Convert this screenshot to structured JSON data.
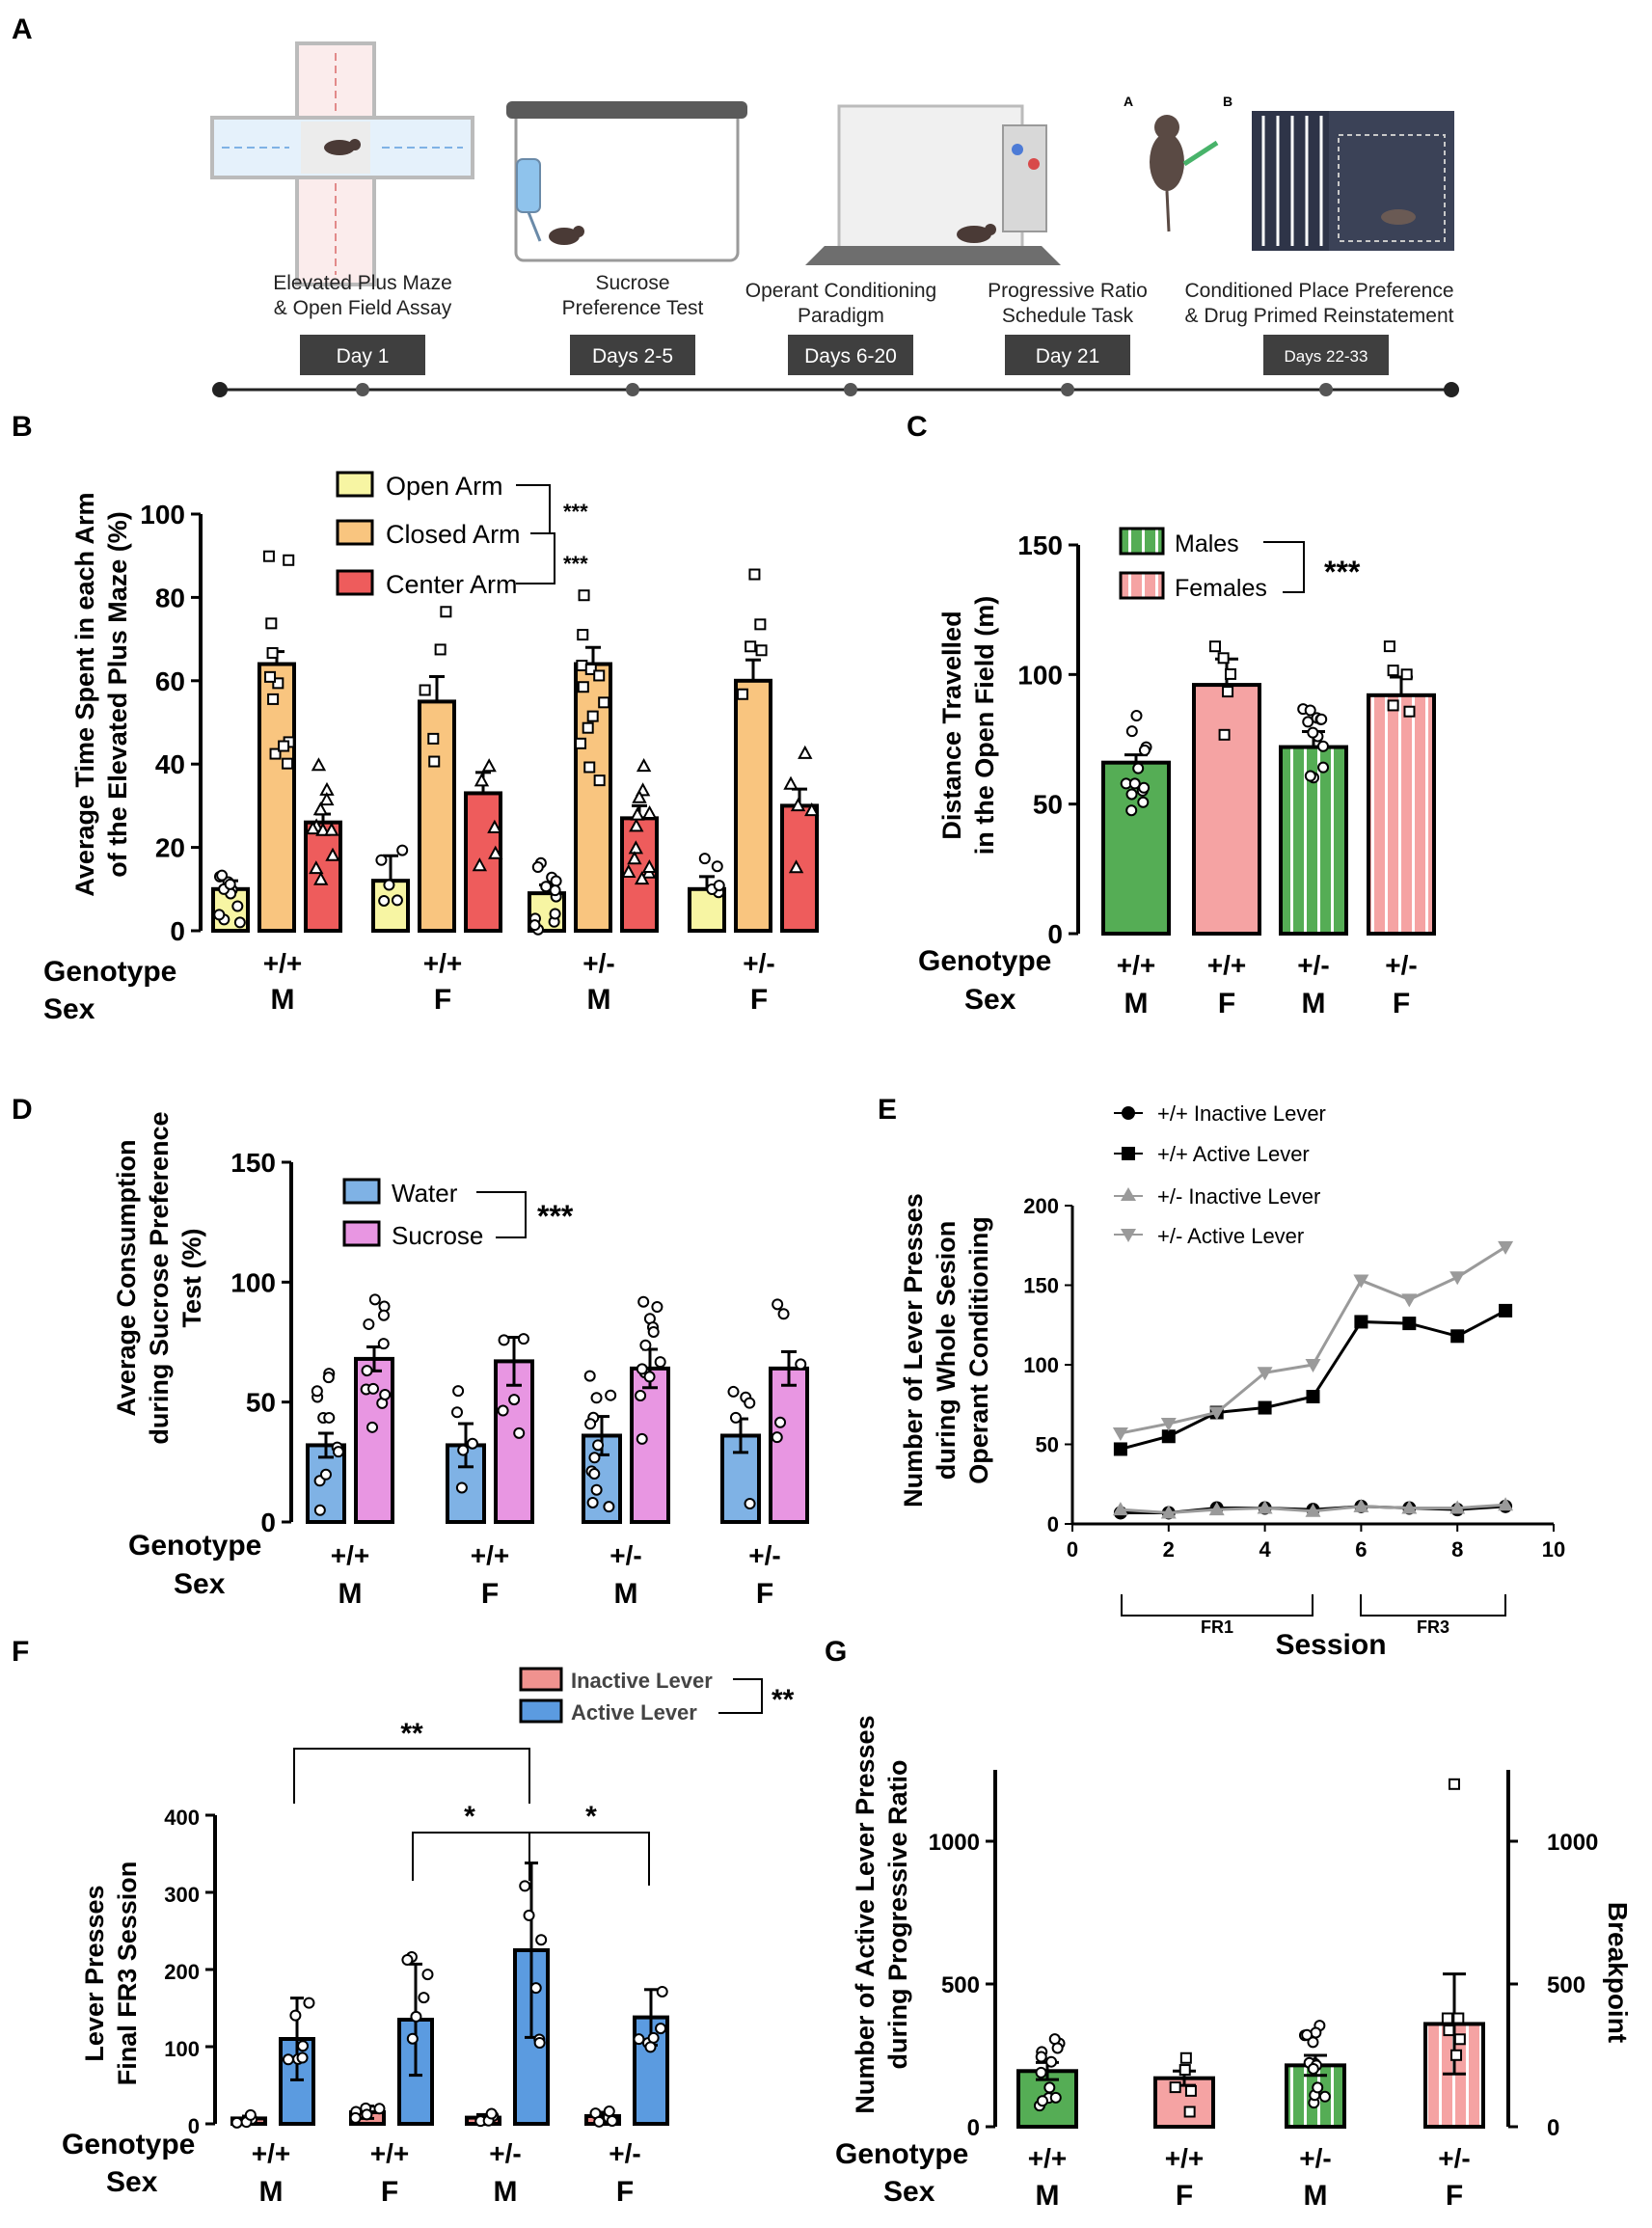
{
  "panel_labels": [
    "A",
    "B",
    "C",
    "D",
    "E",
    "F",
    "G"
  ],
  "panel_a": {
    "steps": [
      {
        "label_lines": [
          "Elevated Plus Maze",
          "& Open Field Assay"
        ],
        "day": "Day 1"
      },
      {
        "label_lines": [
          "Sucrose",
          "Preference Test"
        ],
        "day": "Days 2-5"
      },
      {
        "label_lines": [
          "Operant Conditioning",
          "Paradigm"
        ],
        "day": "Days 6-20"
      },
      {
        "label_lines": [
          "Progressive Ratio",
          "Schedule Task"
        ],
        "day": "Day 21"
      },
      {
        "label_lines": [
          "Conditioned Place Preference",
          "& Drug Primed Reinstatement"
        ],
        "day": "Days 22-33"
      }
    ],
    "inset_labels": [
      "A",
      "B"
    ]
  },
  "row_labels": {
    "genotype": "Genotype",
    "sex": "Sex"
  },
  "chart_data": [
    {
      "panel": "B",
      "type": "bar",
      "ylabel_lines": [
        "Average Time Spent in each Arm",
        "of the Elevated Plus Maze (%)"
      ],
      "ylim": [
        0,
        100
      ],
      "yticks": [
        0,
        20,
        40,
        60,
        80,
        100
      ],
      "groups": [
        {
          "genotype": "+/+",
          "sex": "M"
        },
        {
          "genotype": "+/+",
          "sex": "F"
        },
        {
          "genotype": "+/-",
          "sex": "M"
        },
        {
          "genotype": "+/-",
          "sex": "F"
        }
      ],
      "series": [
        {
          "name": "Open Arm",
          "color": "#f7f5a3",
          "values": [
            10,
            12,
            9,
            10
          ],
          "sem": [
            2,
            6,
            2,
            3
          ]
        },
        {
          "name": "Closed Arm",
          "color": "#f9c57f",
          "values": [
            64,
            55,
            64,
            60
          ],
          "sem": [
            3,
            6,
            4,
            5
          ]
        },
        {
          "name": "Center Arm",
          "color": "#ee5c5c",
          "values": [
            26,
            33,
            27,
            30
          ],
          "sem": [
            2,
            5,
            3,
            4
          ]
        }
      ],
      "significance": [
        "***",
        "***"
      ]
    },
    {
      "panel": "C",
      "type": "bar",
      "ylabel_lines": [
        "Distance Travelled",
        "in the Open Field (m)"
      ],
      "ylim": [
        0,
        150
      ],
      "yticks": [
        0,
        50,
        100,
        150
      ],
      "groups": [
        {
          "genotype": "+/+",
          "sex": "M"
        },
        {
          "genotype": "+/+",
          "sex": "F"
        },
        {
          "genotype": "+/-",
          "sex": "M"
        },
        {
          "genotype": "+/-",
          "sex": "F"
        }
      ],
      "legend": [
        "Males",
        "Females"
      ],
      "colors": {
        "males": "#55ad55",
        "females": "#f5a3a3"
      },
      "values": [
        66,
        96,
        72,
        92
      ],
      "sem": [
        3,
        10,
        6,
        7
      ],
      "significance": "***"
    },
    {
      "panel": "D",
      "type": "bar",
      "ylabel_lines": [
        "Average Consumption",
        "during Sucrose Preference",
        "Test (%)"
      ],
      "ylim": [
        0,
        150
      ],
      "yticks": [
        0,
        50,
        100,
        150
      ],
      "groups": [
        {
          "genotype": "+/+",
          "sex": "M"
        },
        {
          "genotype": "+/+",
          "sex": "F"
        },
        {
          "genotype": "+/-",
          "sex": "M"
        },
        {
          "genotype": "+/-",
          "sex": "F"
        }
      ],
      "series": [
        {
          "name": "Water",
          "color": "#7fb2e5",
          "values": [
            32,
            32,
            36,
            36
          ],
          "sem": [
            5,
            9,
            8,
            7
          ]
        },
        {
          "name": "Sucrose",
          "color": "#e896e2",
          "values": [
            68,
            67,
            64,
            64
          ],
          "sem": [
            5,
            10,
            8,
            7
          ]
        }
      ],
      "significance": "***"
    },
    {
      "panel": "E",
      "type": "line",
      "ylabel_lines": [
        "Number of Lever Presses",
        "during Whole Sesion",
        "Operant Conditioning"
      ],
      "xlabel": "Session",
      "xlim": [
        0,
        10
      ],
      "xticks": [
        0,
        2,
        4,
        6,
        8,
        10
      ],
      "ylim": [
        0,
        200
      ],
      "yticks": [
        0,
        50,
        100,
        150,
        200
      ],
      "x": [
        1,
        2,
        3,
        4,
        5,
        6,
        7,
        8,
        9
      ],
      "series": [
        {
          "name": "+/+ Inactive Lever",
          "marker": "circle",
          "color": "#000000",
          "values": [
            7,
            7,
            10,
            10,
            9,
            11,
            10,
            9,
            11
          ]
        },
        {
          "name": "+/+ Active Lever",
          "marker": "square",
          "color": "#000000",
          "values": [
            47,
            55,
            70,
            73,
            80,
            127,
            126,
            118,
            134
          ]
        },
        {
          "name": "+/- Inactive Lever",
          "marker": "triangle-up",
          "color": "#9a9a9a",
          "values": [
            9,
            7,
            9,
            10,
            8,
            11,
            10,
            10,
            12
          ]
        },
        {
          "name": "+/- Active Lever",
          "marker": "triangle-down",
          "color": "#9a9a9a",
          "values": [
            57,
            63,
            70,
            95,
            100,
            153,
            141,
            155,
            174
          ]
        }
      ],
      "brackets": [
        "FR1",
        "FR3"
      ]
    },
    {
      "panel": "F",
      "type": "bar",
      "ylabel_lines": [
        "Lever Presses",
        "Final FR3 Session"
      ],
      "ylim": [
        0,
        400
      ],
      "yticks": [
        0,
        100,
        200,
        300,
        400
      ],
      "groups": [
        {
          "genotype": "+/+",
          "sex": "M"
        },
        {
          "genotype": "+/+",
          "sex": "F"
        },
        {
          "genotype": "+/-",
          "sex": "M"
        },
        {
          "genotype": "+/-",
          "sex": "F"
        }
      ],
      "series": [
        {
          "name": "Inactive Lever",
          "color": "#f0928f",
          "values": [
            7,
            15,
            8,
            10
          ],
          "err": [
            3,
            8,
            4,
            5
          ]
        },
        {
          "name": "Active Lever",
          "color": "#5b9be0",
          "values": [
            110,
            135,
            225,
            138
          ],
          "err": [
            53,
            72,
            113,
            36
          ]
        }
      ],
      "significance": {
        "legend": "**",
        "comparisons": [
          "**",
          "*",
          "*"
        ]
      }
    },
    {
      "panel": "G",
      "type": "bar",
      "ylabel_lines": [
        "Number of Active Lever Presses",
        "during  Progressive Ratio"
      ],
      "y2label": "Breakpoint",
      "ylim": [
        0,
        1250
      ],
      "yticks": [
        0,
        500,
        1000
      ],
      "y2ticks": [
        0,
        500,
        1000
      ],
      "groups": [
        {
          "genotype": "+/+",
          "sex": "M"
        },
        {
          "genotype": "+/+",
          "sex": "F"
        },
        {
          "genotype": "+/-",
          "sex": "M"
        },
        {
          "genotype": "+/-",
          "sex": "F"
        }
      ],
      "colors": {
        "males": "#55ad55",
        "females": "#f5a3a3"
      },
      "values": [
        195,
        170,
        215,
        360
      ],
      "sem": [
        30,
        25,
        35,
        175
      ]
    }
  ]
}
